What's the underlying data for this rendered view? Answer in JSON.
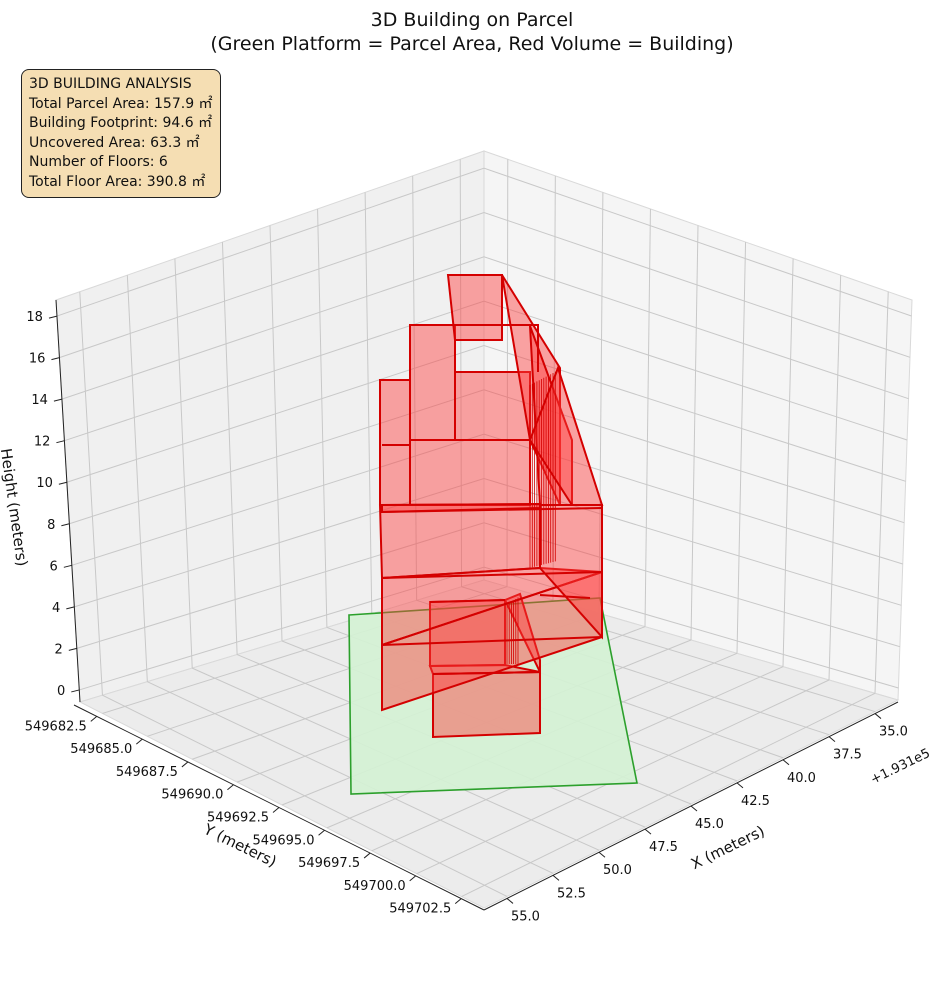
{
  "chart_data": {
    "type": "3d-polygons",
    "title": "3D Building on Parcel",
    "subtitle": "(Green Platform = Parcel Area, Red Volume = Building)",
    "xlabel": "X (meters)",
    "ylabel": "Y (meters)",
    "zlabel": "Height (meters)",
    "x_offset_label": "+1.931e5",
    "x_ticks": [
      "35.0",
      "37.5",
      "40.0",
      "42.5",
      "45.0",
      "47.5",
      "50.0",
      "52.5",
      "55.0"
    ],
    "y_ticks": [
      "549682.5",
      "549685.0",
      "549687.5",
      "549690.0",
      "549692.5",
      "549695.0",
      "549697.5",
      "549700.0",
      "549702.5"
    ],
    "z_ticks": [
      "0",
      "2",
      "4",
      "6",
      "8",
      "10",
      "12",
      "14",
      "16",
      "18"
    ],
    "zlim": [
      0,
      18
    ],
    "grid": true,
    "colors": {
      "parcel_fill": "#d4f2d4",
      "parcel_edge": "#2ca02c",
      "building_fill": "#ff3b3b",
      "building_edge": "#d40000",
      "annotation_bg": "#f5deb3"
    },
    "series": [
      {
        "name": "Green Platform = Parcel Area",
        "role": "parcel",
        "z": 0
      },
      {
        "name": "Red Volume = Building",
        "role": "building",
        "floors": 6,
        "floor_heights": [
          0,
          3,
          6,
          9,
          12,
          15,
          18
        ]
      }
    ]
  },
  "stats": {
    "heading": "3D BUILDING ANALYSIS",
    "lines": [
      "Total Parcel Area: 157.9 ㎡",
      "Building Footprint: 94.6 ㎡",
      "Uncovered Area: 63.3 ㎡",
      "Number of Floors: 6",
      "Total Floor Area: 390.8 ㎡"
    ]
  }
}
